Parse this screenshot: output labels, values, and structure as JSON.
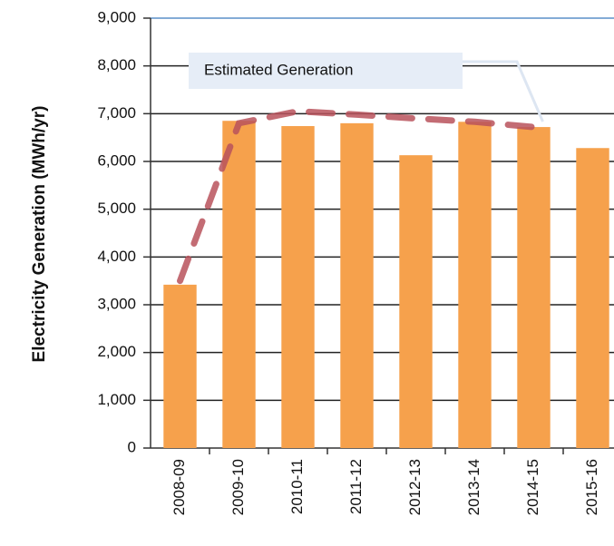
{
  "chart_data": {
    "type": "bar",
    "y_axis_label": "Electricity Generation (MWh/yr)",
    "categories": [
      "2008-09",
      "2009-10",
      "2010-11",
      "2011-12",
      "2012-13",
      "2013-14",
      "2014-15",
      "2015-16"
    ],
    "values": [
      3420,
      6850,
      6740,
      6800,
      6130,
      6830,
      6720,
      6280
    ],
    "color": "#f6a14c",
    "series": [
      {
        "name": "Estimated Generation",
        "color": "#b9525c",
        "values": [
          3500,
          6800,
          7050,
          6980,
          6900,
          6830,
          6720,
          null
        ]
      }
    ],
    "ylim": [
      0,
      9000
    ],
    "yticks": [
      0,
      {
        "value": 1000,
        "label": "1,000"
      },
      {
        "value": 2000,
        "label": "2,000"
      },
      {
        "value": 3000,
        "label": "3,000"
      },
      {
        "value": 4000,
        "label": "4,000"
      },
      {
        "value": 5000,
        "label": "5,000"
      },
      {
        "value": 6000,
        "label": "6,000"
      },
      {
        "value": 7000,
        "label": "7,000"
      },
      {
        "value": 8000,
        "label": "8,000"
      },
      {
        "value": 9000,
        "label": "9,000"
      }
    ],
    "grid": true
  }
}
